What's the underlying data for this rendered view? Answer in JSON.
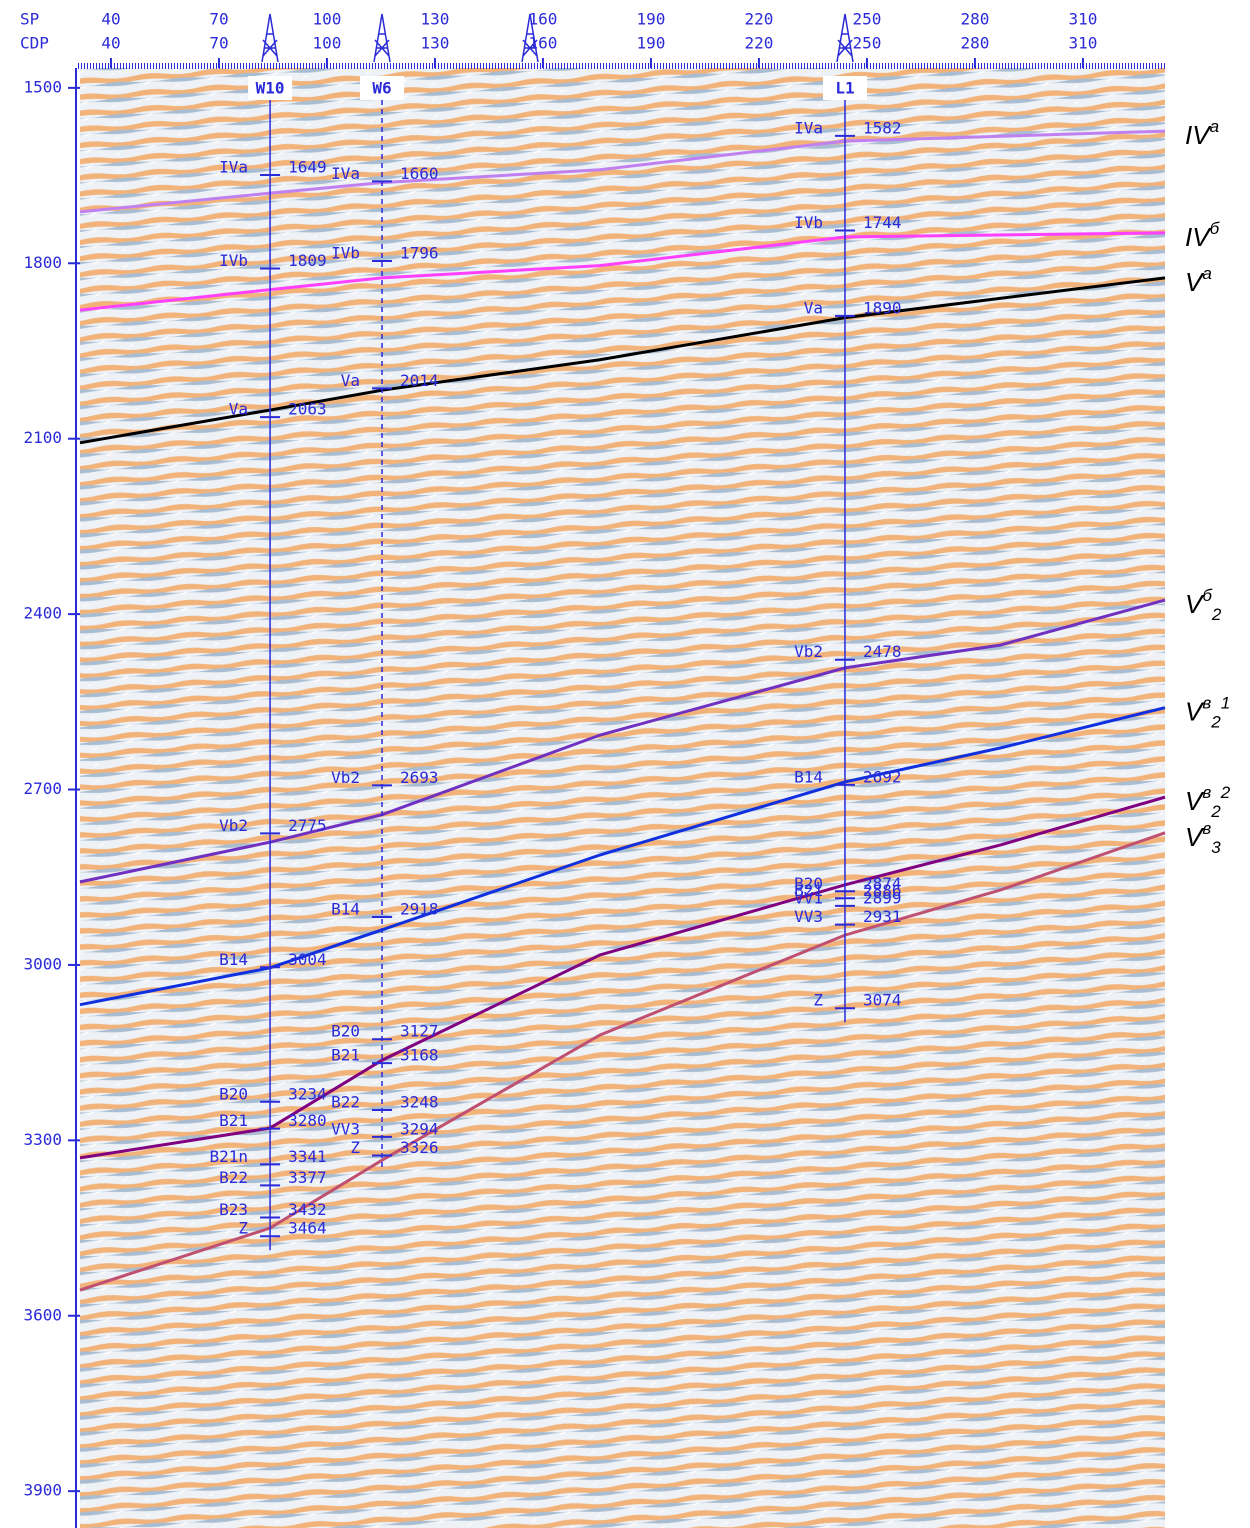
{
  "chart_data": {
    "type": "seismic-section",
    "x_row_labels": [
      "SP",
      "CDP"
    ],
    "xlim": [
      31.4,
      332.8
    ],
    "xticks": [
      40,
      70,
      100,
      130,
      160,
      190,
      220,
      250,
      280,
      310
    ],
    "cdp_ticks": [
      40,
      70,
      100,
      130,
      160,
      190,
      220,
      250,
      280,
      310
    ],
    "ylim": [
      1466,
      3963
    ],
    "yticks": [
      1500,
      1800,
      2100,
      2400,
      2700,
      3000,
      3300,
      3600,
      3900
    ],
    "wells": [
      {
        "name": "W10",
        "sp": 84.2,
        "line": "solid",
        "markers": [
          {
            "label": "IVa",
            "depth": 1649
          },
          {
            "label": "IVb",
            "depth": 1809
          },
          {
            "label": "Va",
            "depth": 2063
          },
          {
            "label": "Vb2",
            "depth": 2775
          },
          {
            "label": "B14",
            "depth": 3004
          },
          {
            "label": "B20",
            "depth": 3234
          },
          {
            "label": "B21",
            "depth": 3280
          },
          {
            "label": "B21n",
            "depth": 3341
          },
          {
            "label": "B22",
            "depth": 3377
          },
          {
            "label": "B23",
            "depth": 3432
          },
          {
            "label": "Z",
            "depth": 3464
          }
        ]
      },
      {
        "name": "W6",
        "sp": 115.3,
        "line": "dashed",
        "markers": [
          {
            "label": "IVa",
            "depth": 1660
          },
          {
            "label": "IVb",
            "depth": 1796
          },
          {
            "label": "Va",
            "depth": 2014
          },
          {
            "label": "Vb2",
            "depth": 2693
          },
          {
            "label": "B14",
            "depth": 2918
          },
          {
            "label": "B20",
            "depth": 3127
          },
          {
            "label": "B21",
            "depth": 3168
          },
          {
            "label": "B22",
            "depth": 3248
          },
          {
            "label": "VV3",
            "depth": 3294
          },
          {
            "label": "Z",
            "depth": 3326
          }
        ]
      },
      {
        "name": "L1",
        "sp": 243.9,
        "line": "solid",
        "markers": [
          {
            "label": "IVa",
            "depth": 1582
          },
          {
            "label": "IVb",
            "depth": 1744
          },
          {
            "label": "Va",
            "depth": 1890
          },
          {
            "label": "Vb2",
            "depth": 2478
          },
          {
            "label": "B14",
            "depth": 2692
          },
          {
            "label": "B20",
            "depth": 2874
          },
          {
            "label": "B21",
            "depth": 2886
          },
          {
            "label": "VV1",
            "depth": 2899
          },
          {
            "label": "VV3",
            "depth": 2931
          },
          {
            "label": "Z",
            "depth": 3074
          }
        ]
      }
    ],
    "series": [
      {
        "label": [
          {
            "text": "IV"
          },
          {
            "text": "a",
            "pos": "sup"
          }
        ],
        "color": "#c080f0",
        "x": [
          31.4,
          84.2,
          115.3,
          175.8,
          243.9,
          332.8
        ],
        "values": [
          1712,
          1680,
          1662,
          1640,
          1591,
          1574
        ]
      },
      {
        "label": [
          {
            "text": "IV"
          },
          {
            "text": "б",
            "pos": "sup"
          }
        ],
        "color": "#ff40ff",
        "x": [
          31.4,
          84.2,
          115.3,
          175.8,
          243.9,
          332.8
        ],
        "values": [
          1880,
          1845,
          1825,
          1804,
          1755,
          1748
        ]
      },
      {
        "label": [
          {
            "text": "V"
          },
          {
            "text": "a",
            "pos": "sup"
          }
        ],
        "color": "#000000",
        "x": [
          31.4,
          84.2,
          115.3,
          175.8,
          243.9,
          332.8
        ],
        "values": [
          2107,
          2051,
          2017,
          1965,
          1893,
          1825
        ]
      },
      {
        "label": [
          {
            "text": "V"
          },
          {
            "text": "б",
            "pos": "sup"
          },
          {
            "text": "2",
            "pos": "sub"
          }
        ],
        "color": "#7030c0",
        "x": [
          31.4,
          84.2,
          115.3,
          175.8,
          243.9,
          287,
          332.8
        ],
        "values": [
          2858,
          2790,
          2743,
          2607,
          2492,
          2453,
          2376
        ]
      },
      {
        "label": [
          {
            "text": "V"
          },
          {
            "text": "в",
            "pos": "sup"
          },
          {
            "text": "2",
            "pos": "sub"
          },
          {
            "text": "1",
            "pos": "sup"
          }
        ],
        "color": "#1030e0",
        "x": [
          31.4,
          84.2,
          115.3,
          175.8,
          243.9,
          287,
          332.8
        ],
        "values": [
          3068,
          3005,
          2940,
          2812,
          2687,
          2629,
          2560
        ]
      },
      {
        "label": [
          {
            "text": "V"
          },
          {
            "text": "в",
            "pos": "sup"
          },
          {
            "text": "2",
            "pos": "sub"
          },
          {
            "text": "2",
            "pos": "sup"
          }
        ],
        "color": "#800080",
        "x": [
          31.4,
          84.2,
          115.3,
          175.8,
          243.9,
          287,
          332.8
        ],
        "values": [
          3330,
          3279,
          3163,
          2983,
          2863,
          2795,
          2713
        ]
      },
      {
        "label": [
          {
            "text": "V"
          },
          {
            "text": "в",
            "pos": "sup"
          },
          {
            "text": "3",
            "pos": "sub"
          }
        ],
        "color": "#c05070",
        "x": [
          31.4,
          84.2,
          115.3,
          175.8,
          243.9,
          287,
          332.8
        ],
        "values": [
          3556,
          3450,
          3334,
          3120,
          2949,
          2872,
          2774
        ]
      }
    ]
  }
}
